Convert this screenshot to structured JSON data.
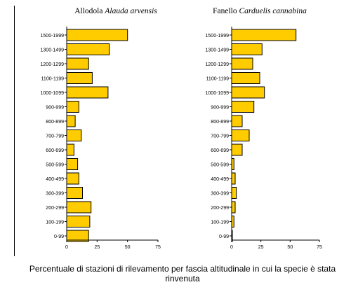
{
  "chart_data": [
    {
      "type": "bar",
      "orientation": "horizontal",
      "title_common": "Allodola",
      "title_latin": "Alauda arvensis",
      "categories": [
        "1500-1999",
        "1300-1499",
        "1200-1299",
        "1100-1199",
        "1000-1099",
        "900-999",
        "800-899",
        "700-799",
        "600-699",
        "500-599",
        "400-499",
        "300-399",
        "200-299",
        "100-199",
        "0-99"
      ],
      "values": [
        50,
        35,
        18,
        21,
        34,
        10,
        7,
        12,
        6,
        9,
        10,
        13,
        20,
        19,
        18
      ],
      "xlim": [
        0,
        75
      ],
      "xticks": [
        "0",
        "25",
        "50",
        "75"
      ],
      "bar_color": "#FFCC00",
      "bar_edge": "#000000"
    },
    {
      "type": "bar",
      "orientation": "horizontal",
      "title_common": "Fanello",
      "title_latin": "Carduelis cannabina",
      "categories": [
        "1500-1999",
        "1300-1499",
        "1200-1299",
        "1100-1199",
        "1000-1099",
        "900-999",
        "800-899",
        "700-799",
        "600-699",
        "500-599",
        "400-499",
        "300-399",
        "200-299",
        "100-199",
        "0-99"
      ],
      "values": [
        55,
        26,
        18,
        24,
        28,
        19,
        9,
        15,
        9,
        2,
        3,
        4,
        3,
        2,
        0.5
      ],
      "xlim": [
        0,
        75
      ],
      "xticks": [
        "0",
        "25",
        "50",
        "75"
      ],
      "bar_color": "#FFCC00",
      "bar_edge": "#000000"
    }
  ],
  "caption": "Percentuale di stazioni di rilevamento per fascia altitudinale in cui la specie è stata rinvenuta"
}
